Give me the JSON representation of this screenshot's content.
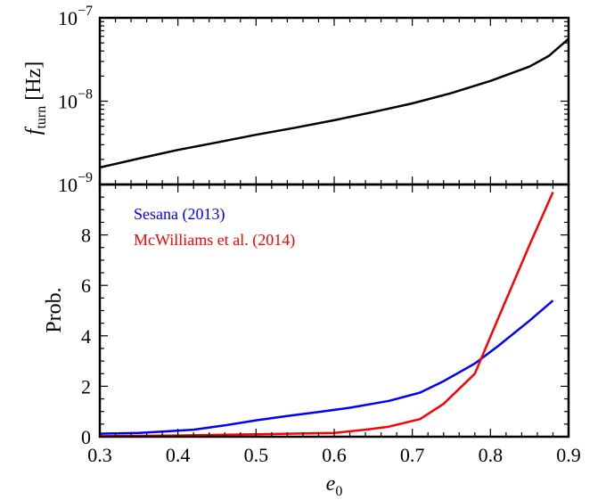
{
  "chart_data": [
    {
      "type": "line",
      "yscale": "log",
      "xlim": [
        0.3,
        0.9
      ],
      "ylim": [
        1e-09,
        1e-07
      ],
      "ylabel_main": "f",
      "ylabel_sub": "turn",
      "ylabel_unit": " [Hz]",
      "yticks": [
        {
          "value": 1e-09,
          "base": "10",
          "exp": "−9"
        },
        {
          "value": 1e-08,
          "base": "10",
          "exp": "−8"
        },
        {
          "value": 1e-07,
          "base": "10",
          "exp": "−7"
        }
      ],
      "series": [
        {
          "color": "#000000",
          "x": [
            0.3,
            0.35,
            0.4,
            0.45,
            0.5,
            0.55,
            0.6,
            0.65,
            0.7,
            0.75,
            0.8,
            0.85,
            0.875,
            0.9
          ],
          "y": [
            1.6e-09,
            2.05e-09,
            2.6e-09,
            3.2e-09,
            3.95e-09,
            4.8e-09,
            5.9e-09,
            7.4e-09,
            9.4e-09,
            1.25e-08,
            1.75e-08,
            2.6e-08,
            3.5e-08,
            5.6e-08
          ]
        }
      ]
    },
    {
      "type": "line",
      "xlim": [
        0.3,
        0.9
      ],
      "ylim": [
        0,
        10
      ],
      "ylabel": "Prob.",
      "xlabel_main": "e",
      "xlabel_sub": "0",
      "xticks": [
        "0.3",
        "0.4",
        "0.5",
        "0.6",
        "0.7",
        "0.8",
        "0.9"
      ],
      "yticks": [
        "0",
        "2",
        "4",
        "6",
        "8"
      ],
      "legend_position": "top-left",
      "series": [
        {
          "name": "Sesana (2013)",
          "color": "#0000ff",
          "x": [
            0.3,
            0.35,
            0.38,
            0.42,
            0.46,
            0.5,
            0.54,
            0.58,
            0.62,
            0.67,
            0.71,
            0.74,
            0.78,
            0.81,
            0.85,
            0.88
          ],
          "y": [
            0.12,
            0.15,
            0.2,
            0.28,
            0.45,
            0.65,
            0.82,
            0.98,
            1.15,
            1.42,
            1.75,
            2.2,
            2.9,
            3.6,
            4.6,
            5.4
          ]
        },
        {
          "name": "McWilliams et al. (2014)",
          "color": "#ff0000",
          "x": [
            0.3,
            0.4,
            0.5,
            0.6,
            0.64,
            0.67,
            0.71,
            0.74,
            0.78,
            0.81,
            0.85,
            0.88
          ],
          "y": [
            0.02,
            0.05,
            0.1,
            0.15,
            0.28,
            0.4,
            0.7,
            1.3,
            2.5,
            4.7,
            7.6,
            9.7
          ]
        }
      ]
    }
  ]
}
